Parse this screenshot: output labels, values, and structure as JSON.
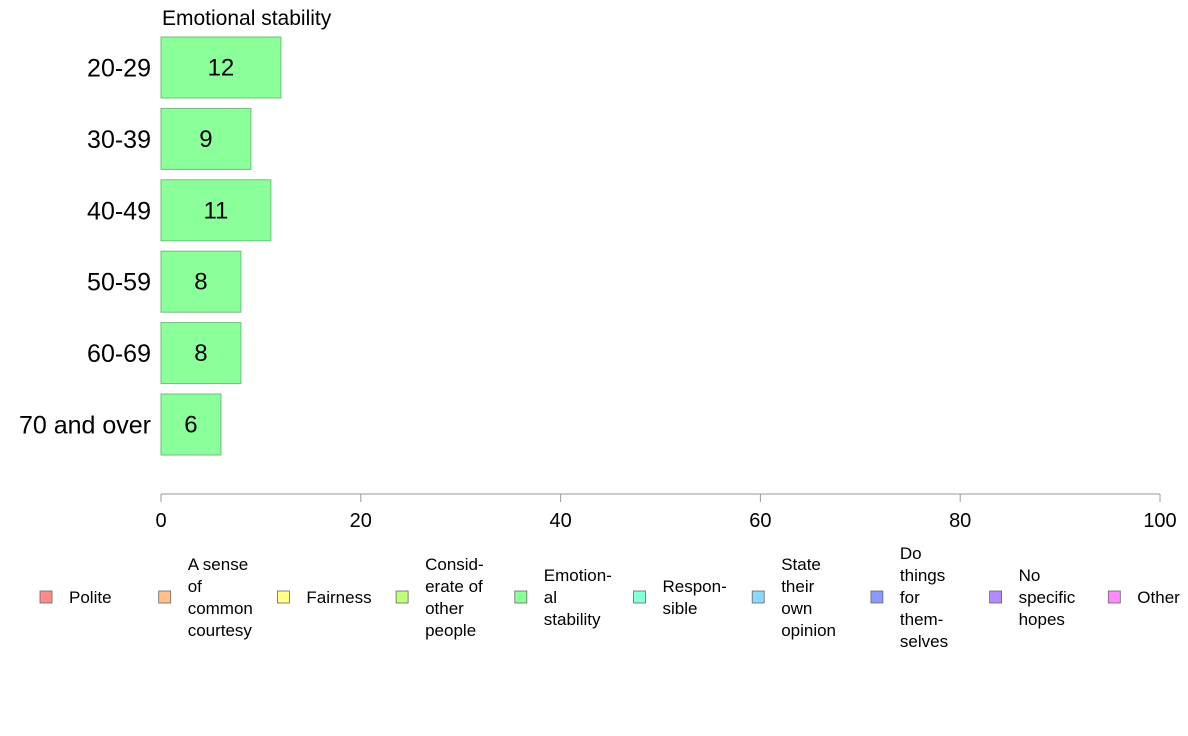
{
  "chart_data": {
    "type": "bar",
    "orientation": "horizontal",
    "title": "Emotional stability",
    "categories": [
      "20-29",
      "30-39",
      "40-49",
      "50-59",
      "60-69",
      "70 and over"
    ],
    "values": [
      12,
      9,
      11,
      8,
      8,
      6
    ],
    "data_labels": [
      "12",
      "9",
      "11",
      "8",
      "8",
      "6"
    ],
    "xlim": [
      0,
      100
    ],
    "xticks": [
      0,
      20,
      40,
      60,
      80,
      100
    ],
    "bar_color": "#8bff9a",
    "bar_stroke": "#6fbf7a",
    "grid": false,
    "legend_position": "bottom",
    "legend": [
      {
        "name": "Polite",
        "lines": [
          "Polite"
        ],
        "color": "#ff8a8a"
      },
      {
        "name": "A sense of common courtesy",
        "lines": [
          "A sense",
          "of",
          "common",
          "courtesy"
        ],
        "color": "#ffc08a"
      },
      {
        "name": "Fairness",
        "lines": [
          "Fairness"
        ],
        "color": "#ffff8a"
      },
      {
        "name": "Considerate of other people",
        "lines": [
          "Consid-",
          "erate of",
          "other",
          "people"
        ],
        "color": "#bfff7a"
      },
      {
        "name": "Emotional stability",
        "lines": [
          "Emotion-",
          "al",
          "stability"
        ],
        "color": "#8bff9a"
      },
      {
        "name": "Responsible",
        "lines": [
          "Respon-",
          "sible"
        ],
        "color": "#8affd9"
      },
      {
        "name": "State their own opinion",
        "lines": [
          "State",
          "their",
          "own",
          "opinion"
        ],
        "color": "#8ad9ff"
      },
      {
        "name": "Do things for themselves",
        "lines": [
          "Do",
          "things",
          "for",
          "them-",
          "selves"
        ],
        "color": "#8a9aff"
      },
      {
        "name": "No specific hopes",
        "lines": [
          "No",
          "specific",
          "hopes"
        ],
        "color": "#b38aff"
      },
      {
        "name": "Other",
        "lines": [
          "Other"
        ],
        "color": "#ff8aff"
      }
    ]
  }
}
